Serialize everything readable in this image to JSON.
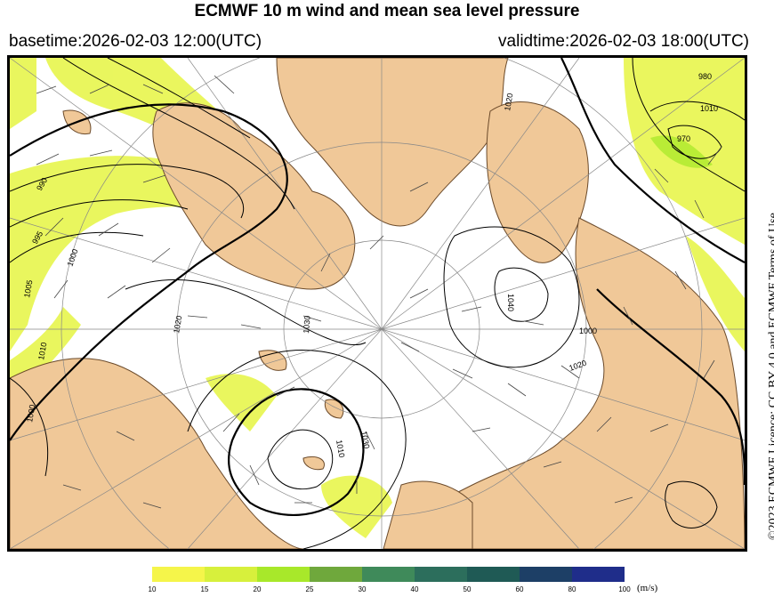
{
  "header": {
    "title": "ECMWF 10 m wind and mean sea level pressure",
    "basetime": "basetime:2026-02-03 12:00(UTC)",
    "validtime": "validtime:2026-02-03 18:00(UTC)"
  },
  "licence": "©2023 ECMWF Licence: CC BY 4.0 and ECMWF Terms of Use",
  "isobar_labels": [
    "990",
    "995",
    "1000",
    "1005",
    "1010",
    "1020",
    "1030",
    "1040",
    "980",
    "970",
    "1010",
    "1020",
    "1030",
    "1010",
    "1000",
    "1000",
    "1020"
  ],
  "colorbar": {
    "unit": "(m/s)",
    "ticks": [
      "10",
      "15",
      "20",
      "25",
      "30",
      "40",
      "50",
      "60",
      "80",
      "100"
    ],
    "colors": [
      "#f5f54a",
      "#d7f03c",
      "#a8e82a",
      "#6fa83c",
      "#3f8a5a",
      "#2c6e5c",
      "#1f5a55",
      "#1d3f66",
      "#1f2d8a"
    ]
  },
  "colors": {
    "land": "#f0c898",
    "sea": "#ffffff",
    "wind_fill": "#e6f542",
    "isobar": "#000000"
  }
}
